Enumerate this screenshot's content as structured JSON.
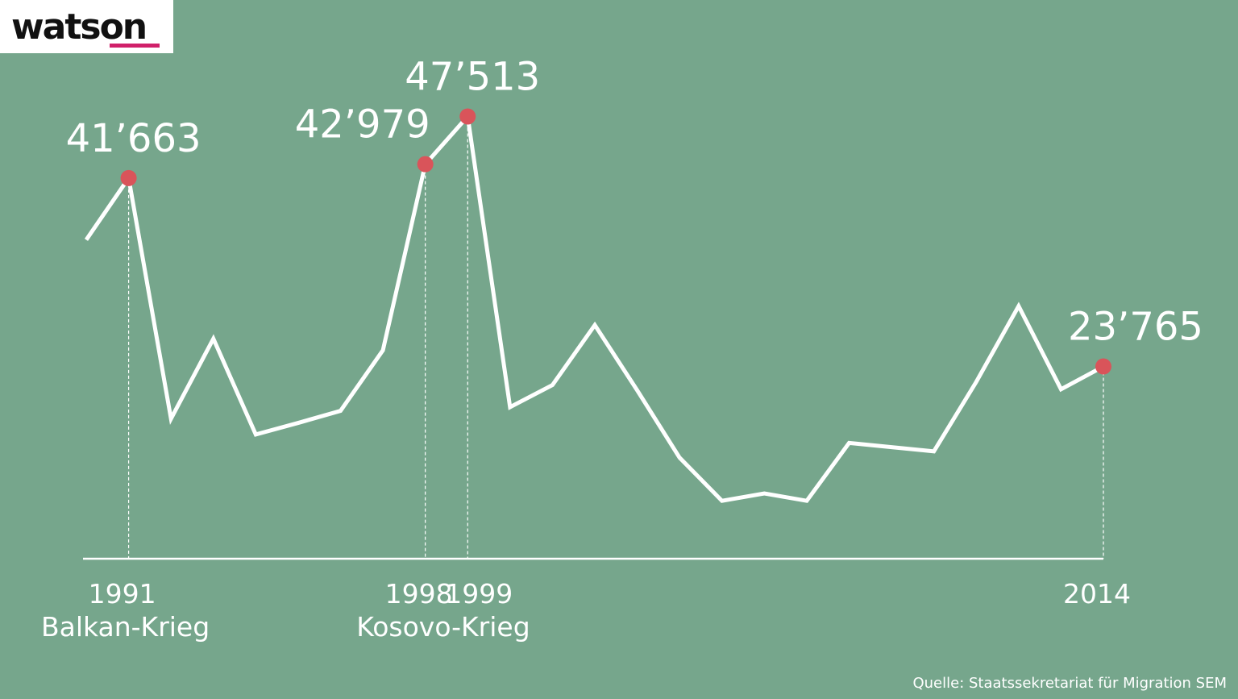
{
  "brand": "watson",
  "source": "Quelle: Staatssekretariat für Migration SEM",
  "chart_data": {
    "type": "line",
    "categories": [
      null,
      "1991",
      null,
      null,
      null,
      null,
      null,
      null,
      "1998",
      "1999",
      null,
      null,
      null,
      null,
      null,
      null,
      null,
      null,
      null,
      null,
      null,
      null,
      null,
      null,
      "2014"
    ],
    "values": [
      35800,
      41663,
      18800,
      26400,
      17300,
      18400,
      19550,
      25300,
      42979,
      47513,
      19900,
      22000,
      27700,
      21500,
      15100,
      11000,
      11700,
      11000,
      16500,
      16100,
      15700,
      22300,
      29500,
      21600,
      23765
    ],
    "value_labels": [
      null,
      "41’663",
      null,
      null,
      null,
      null,
      null,
      null,
      "42’979",
      "47’513",
      null,
      null,
      null,
      null,
      null,
      null,
      null,
      null,
      null,
      null,
      null,
      null,
      null,
      null,
      "23’765"
    ],
    "annotations": [
      {
        "text": "Balkan-Krieg",
        "index": 1
      },
      {
        "text": "Kosovo-Krieg",
        "index": 8.5
      }
    ],
    "color": "#ffffff",
    "marker_color": "#d9545a",
    "ylim": [
      5500,
      50000
    ]
  }
}
